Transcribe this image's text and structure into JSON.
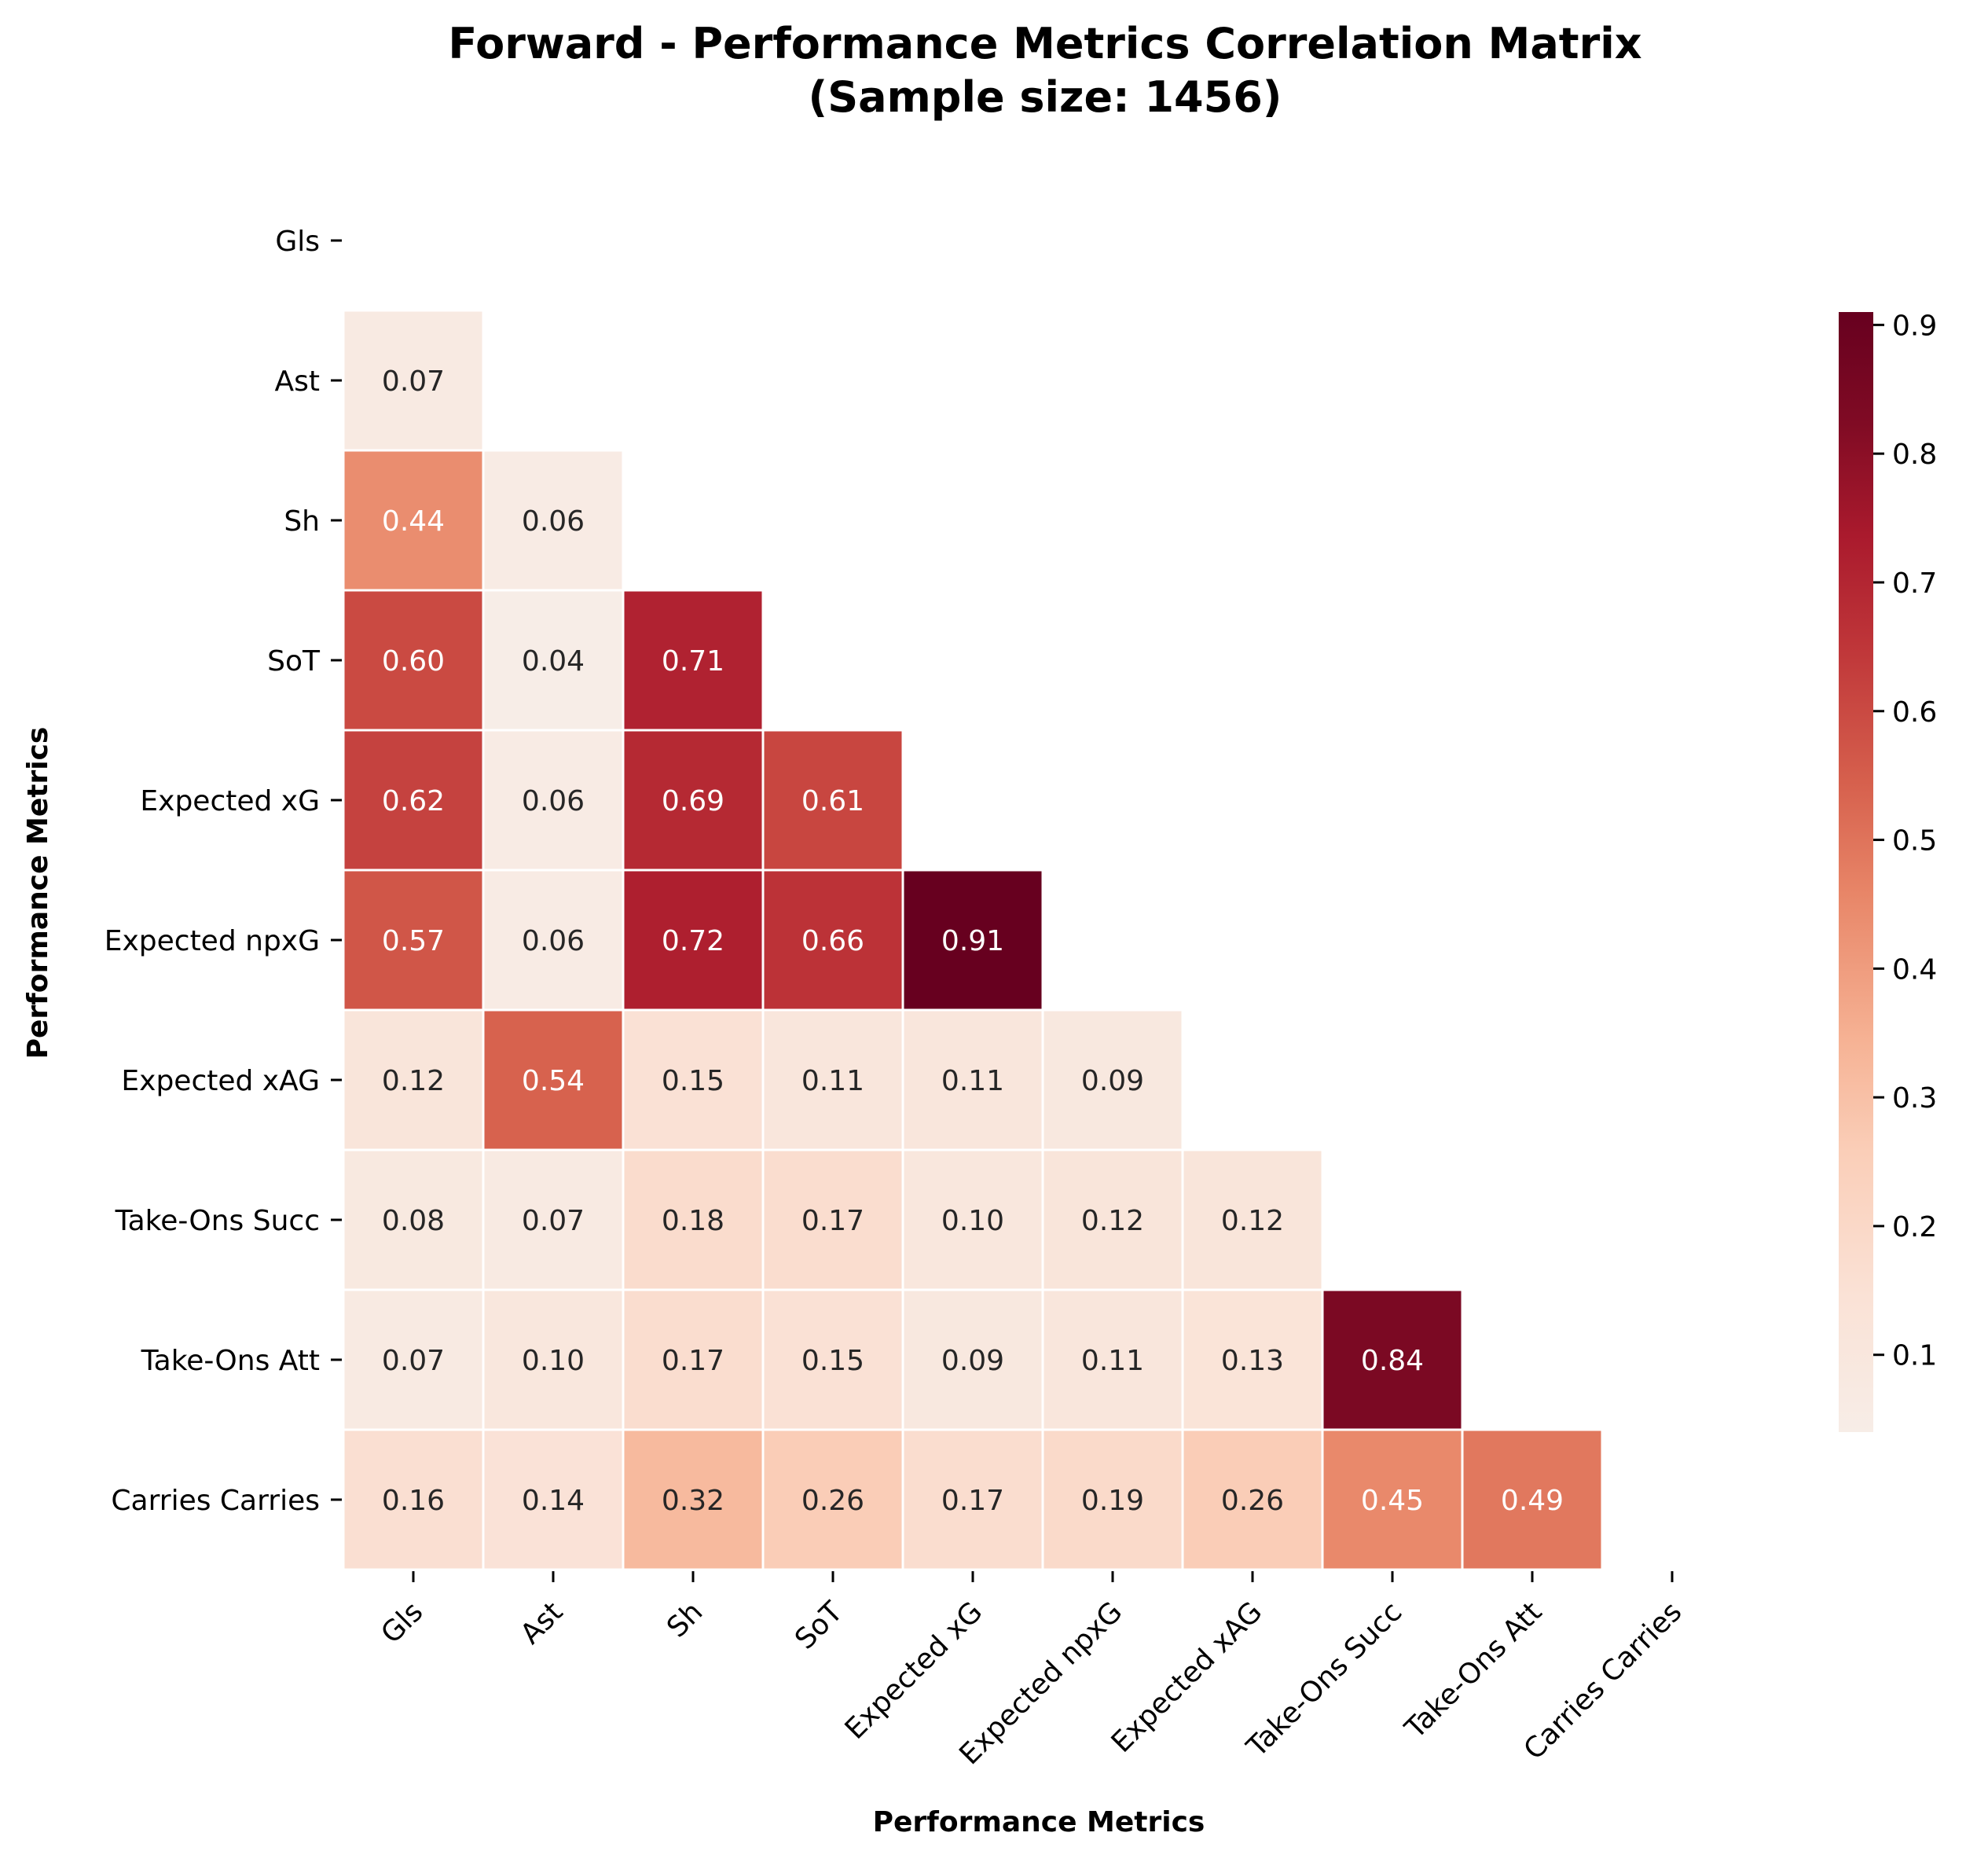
{
  "chart_data": {
    "type": "heatmap",
    "title": "Forward - Performance Metrics Correlation Matrix",
    "subtitle": "(Sample size: 1456)",
    "xlabel": "Performance Metrics",
    "ylabel": "Performance Metrics",
    "labels": [
      "Gls",
      "Ast",
      "Sh",
      "SoT",
      "Expected xG",
      "Expected npxG",
      "Expected xAG",
      "Take-Ons Succ",
      "Take-Ons Att",
      "Carries Carries"
    ],
    "mask": "upper-triangle-including-diagonal",
    "matrix": [
      [
        null,
        null,
        null,
        null,
        null,
        null,
        null,
        null,
        null,
        null
      ],
      [
        0.07,
        null,
        null,
        null,
        null,
        null,
        null,
        null,
        null,
        null
      ],
      [
        0.44,
        0.06,
        null,
        null,
        null,
        null,
        null,
        null,
        null,
        null
      ],
      [
        0.6,
        0.04,
        0.71,
        null,
        null,
        null,
        null,
        null,
        null,
        null
      ],
      [
        0.62,
        0.06,
        0.69,
        0.61,
        null,
        null,
        null,
        null,
        null,
        null
      ],
      [
        0.57,
        0.06,
        0.72,
        0.66,
        0.91,
        null,
        null,
        null,
        null,
        null
      ],
      [
        0.12,
        0.54,
        0.15,
        0.11,
        0.11,
        0.09,
        null,
        null,
        null,
        null
      ],
      [
        0.08,
        0.07,
        0.18,
        0.17,
        0.1,
        0.12,
        0.12,
        null,
        null,
        null
      ],
      [
        0.07,
        0.1,
        0.17,
        0.15,
        0.09,
        0.11,
        0.13,
        0.84,
        null,
        null
      ],
      [
        0.16,
        0.14,
        0.32,
        0.26,
        0.17,
        0.19,
        0.26,
        0.45,
        0.49,
        null
      ]
    ],
    "value_format": "2 decimals",
    "colormap": "Reds",
    "colorbar": {
      "range": [
        0.04,
        0.91
      ],
      "ticks": [
        0.1,
        0.2,
        0.3,
        0.4,
        0.5,
        0.6,
        0.7,
        0.8,
        0.9
      ],
      "tick_labels": [
        "0.1",
        "0.2",
        "0.3",
        "0.4",
        "0.5",
        "0.6",
        "0.7",
        "0.8",
        "0.9"
      ],
      "placement": "right"
    },
    "colors": {
      "low": "#f7ede7",
      "high": "#67001f",
      "cell_border": "#ffffff",
      "text_dark": "#262626",
      "text_light": "#ffffff"
    }
  }
}
